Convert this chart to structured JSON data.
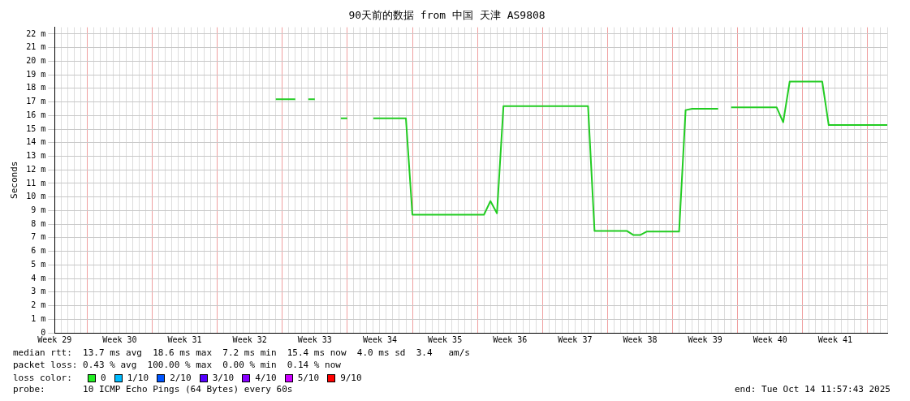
{
  "chart_data": {
    "type": "line",
    "title": "90天前的数据 from 中国 天津 AS9808",
    "ylabel": "Seconds",
    "categories": [
      "Week 29",
      null,
      null,
      null,
      null,
      null,
      null,
      null,
      null,
      null,
      "Week 30",
      null,
      null,
      null,
      null,
      null,
      null,
      null,
      null,
      null,
      "Week 31",
      null,
      null,
      null,
      null,
      null,
      null,
      null,
      null,
      null,
      "Week 32",
      null,
      null,
      null,
      null,
      null,
      null,
      null,
      null,
      null,
      "Week 33",
      null,
      null,
      null,
      null,
      null,
      null,
      null,
      null,
      null,
      "Week 34",
      null,
      null,
      null,
      null,
      null,
      null,
      null,
      null,
      null,
      "Week 35",
      null,
      null,
      null,
      null,
      null,
      null,
      null,
      null,
      null,
      "Week 36",
      null,
      null,
      null,
      null,
      null,
      null,
      null,
      null,
      null,
      "Week 37",
      null,
      null,
      null,
      null,
      null,
      null,
      null,
      null,
      null,
      "Week 38",
      null,
      null,
      null,
      null,
      null,
      null,
      null,
      null,
      null,
      "Week 39",
      null,
      null,
      null,
      null,
      null,
      null,
      null,
      null,
      null,
      "Week 40",
      null,
      null,
      null,
      null,
      null,
      null,
      null,
      null,
      null,
      "Week 41",
      null,
      null,
      null,
      null,
      null,
      null,
      null,
      null
    ],
    "ylim": [
      0,
      22.5
    ],
    "yticks": [
      0,
      {
        "value": 1,
        "label": "1 m"
      },
      {
        "value": 2,
        "label": "2 m"
      },
      {
        "value": 3,
        "label": "3 m"
      },
      {
        "value": 4,
        "label": "4 m"
      },
      {
        "value": 5,
        "label": "5 m"
      },
      {
        "value": 6,
        "label": "6 m"
      },
      {
        "value": 7,
        "label": "7 m"
      },
      {
        "value": 8,
        "label": "8 m"
      },
      {
        "value": 9,
        "label": "9 m"
      },
      {
        "value": 10,
        "label": "10 m"
      },
      {
        "value": 11,
        "label": "11 m"
      },
      {
        "value": 12,
        "label": "12 m"
      },
      {
        "value": 13,
        "label": "13 m"
      },
      {
        "value": 14,
        "label": "14 m"
      },
      {
        "value": 15,
        "label": "15 m"
      },
      {
        "value": 16,
        "label": "16 m"
      },
      {
        "value": 17,
        "label": "17 m"
      },
      {
        "value": 18,
        "label": "18 m"
      },
      {
        "value": 19,
        "label": "19 m"
      },
      {
        "value": 20,
        "label": "20 m"
      },
      {
        "value": 21,
        "label": "21 m"
      },
      {
        "value": 22,
        "label": "22 m"
      }
    ],
    "grid": true,
    "legend": false,
    "marker": "none",
    "line_style": "solid",
    "series": [
      {
        "color": "#22cc22",
        "values": [
          null,
          null,
          null,
          null,
          null,
          null,
          null,
          null,
          null,
          null,
          null,
          null,
          null,
          null,
          null,
          null,
          null,
          null,
          null,
          null,
          null,
          null,
          null,
          null,
          null,
          null,
          null,
          null,
          null,
          null,
          null,
          null,
          null,
          null,
          17.2,
          17.2,
          17.2,
          17.2,
          null,
          17.2,
          17.2,
          null,
          null,
          null,
          15.8,
          15.8,
          null,
          null,
          null,
          15.8,
          15.8,
          15.8,
          15.8,
          15.8,
          15.8,
          8.7,
          8.7,
          8.7,
          8.7,
          8.7,
          8.7,
          8.7,
          8.7,
          8.7,
          8.7,
          8.7,
          8.7,
          9.7,
          8.8,
          16.7,
          16.7,
          16.7,
          16.7,
          16.7,
          16.7,
          16.7,
          16.7,
          16.7,
          16.7,
          16.7,
          16.7,
          16.7,
          16.7,
          7.5,
          7.5,
          7.5,
          7.5,
          7.5,
          7.5,
          7.2,
          7.2,
          7.45,
          7.45,
          7.45,
          7.45,
          7.45,
          7.45,
          16.4,
          16.5,
          16.5,
          16.5,
          16.5,
          16.5,
          null,
          16.6,
          16.6,
          16.6,
          16.6,
          16.6,
          16.6,
          16.6,
          16.6,
          15.5,
          18.5,
          18.5,
          18.5,
          18.5,
          18.5,
          18.5,
          15.3,
          15.3,
          15.3,
          15.3,
          15.3,
          15.3,
          15.3,
          15.3,
          15.3,
          15.3
        ]
      }
    ],
    "annotations": [
      "median rtt:  13.7 ms avg  18.6 ms max  7.2 ms min  15.4 ms now  4.0 ms sd  3.4   am/s",
      "packet loss: 0.43 % avg  100.00 % max  0.00 % min  0.14 % now",
      "loss color:",
      "0",
      "1/10",
      "2/10",
      "3/10",
      "4/10",
      "5/10",
      "9/10",
      "probe:       10 ICMP Echo Pings (64 Bytes) every 60s",
      "end: Tue Oct 14 11:57:43 2025"
    ]
  }
}
